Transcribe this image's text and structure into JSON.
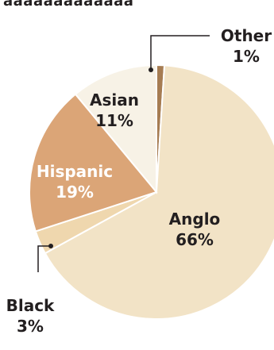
{
  "header_fragment": "aaaaaaaaaaaaa",
  "chart_data": {
    "type": "pie",
    "title": "",
    "slices": [
      {
        "label": "Other",
        "value": 1,
        "value_label": "1%",
        "color": "#a67c52"
      },
      {
        "label": "Anglo",
        "value": 66,
        "value_label": "66%",
        "color": "#f2e3c6"
      },
      {
        "label": "Black",
        "value": 3,
        "value_label": "3%",
        "color": "#efd7ae"
      },
      {
        "label": "Hispanic",
        "value": 19,
        "value_label": "19%",
        "color": "#dba577"
      },
      {
        "label": "Asian",
        "value": 11,
        "value_label": "11%",
        "color": "#f7f2e6"
      }
    ],
    "start_angle_deg": 0,
    "direction": "clockwise",
    "label_colors": {
      "dark": "#231f20",
      "light": "#ffffff"
    },
    "slice_border_color": "#ffffff",
    "leader_line_color": "#231f20"
  }
}
